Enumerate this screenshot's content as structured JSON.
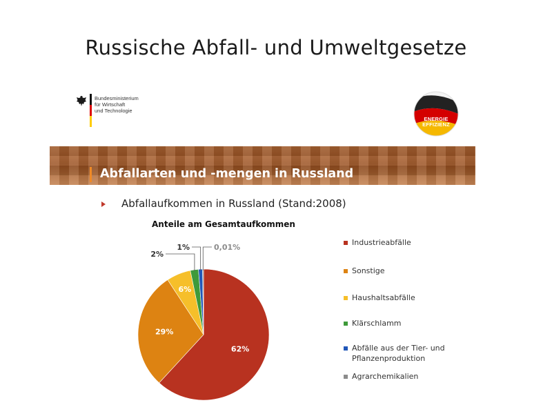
{
  "slide": {
    "title": "Russische Abfall- und Umweltgesetze"
  },
  "ministry_logo": {
    "lines": [
      "Bundesministerium",
      "für Wirtschaft",
      "und Technologie"
    ]
  },
  "energy_badge": {
    "line1": "ENERGIE",
    "line2": "EFFIZIENZ"
  },
  "banner": {
    "title": "Abfallarten und -mengen in Russland"
  },
  "bullet": {
    "text": "Abfallaufkommen in Russland (Stand:2008)"
  },
  "colors": {
    "banner": "#a85a28",
    "accent": "#f08a26",
    "bullet_arrow": "#c0392b"
  },
  "chart_data": {
    "type": "pie",
    "title": "Anteile am Gesamtaufkommen",
    "legend_position": "right",
    "slices": [
      {
        "name": "Industrieabfälle",
        "value": 62,
        "label": "62%",
        "color": "#b83220"
      },
      {
        "name": "Sonstige",
        "value": 29,
        "label": "29%",
        "color": "#dd8312"
      },
      {
        "name": "Haushaltsabfälle",
        "value": 6,
        "label": "6%",
        "color": "#f6bf2a"
      },
      {
        "name": "Klärschlamm",
        "value": 2,
        "label": "2%",
        "color": "#3e9a3a"
      },
      {
        "name": "Abfälle aus der Tier- und\nPflanzenproduktion",
        "value": 1,
        "label": "1%",
        "color": "#2157b8"
      },
      {
        "name": "Agrarchemikalien",
        "value": 0.01,
        "label": "0,01%",
        "color": "#8c8c8c"
      }
    ]
  }
}
